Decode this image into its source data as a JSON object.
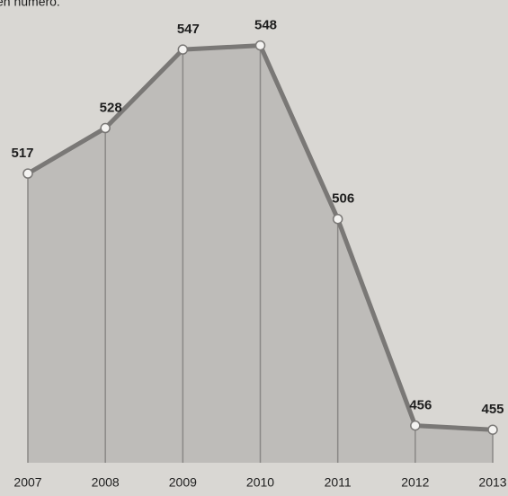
{
  "chart_data": {
    "type": "area",
    "subtitle": "en número.",
    "categories": [
      "2007",
      "2008",
      "2009",
      "2010",
      "2011",
      "2012",
      "2013"
    ],
    "values": [
      517,
      528,
      547,
      548,
      506,
      456,
      455
    ],
    "color": "#7a7876",
    "fill": "#bebcb9",
    "ylim": [
      447,
      559
    ]
  }
}
